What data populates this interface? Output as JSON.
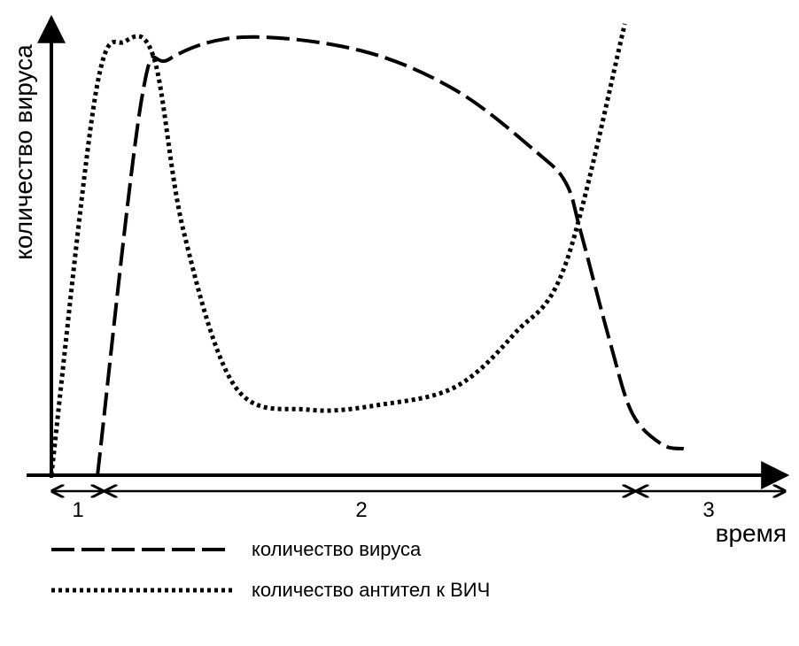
{
  "chart_data": {
    "type": "line",
    "xlabel": "время",
    "ylabel": "количество вируса",
    "stages": [
      "1",
      "2",
      "3"
    ],
    "series": [
      {
        "name": "количество вируса",
        "style": "dashed",
        "color": "#000000",
        "values": [
          [
            0.0628,
            0.0
          ],
          [
            0.1228,
            0.85
          ],
          [
            0.16,
            0.94
          ],
          [
            0.26,
            0.99
          ],
          [
            0.42,
            0.96
          ],
          [
            0.55,
            0.87
          ],
          [
            0.66,
            0.73
          ],
          [
            0.7,
            0.66
          ],
          [
            0.72,
            0.55
          ],
          [
            0.76,
            0.3
          ],
          [
            0.79,
            0.14
          ],
          [
            0.83,
            0.07
          ],
          [
            0.86,
            0.06
          ]
        ]
      },
      {
        "name": "количество антител к ВИЧ",
        "style": "dotted",
        "color": "#000000",
        "values": [
          [
            0.0,
            0.0
          ],
          [
            0.06,
            0.86
          ],
          [
            0.1,
            0.98
          ],
          [
            0.14,
            0.94
          ],
          [
            0.18,
            0.55
          ],
          [
            0.25,
            0.2
          ],
          [
            0.35,
            0.148
          ],
          [
            0.45,
            0.16
          ],
          [
            0.55,
            0.2
          ],
          [
            0.63,
            0.32
          ],
          [
            0.7,
            0.48
          ],
          [
            0.78,
            1.02
          ]
        ]
      }
    ],
    "legend": [
      {
        "label": "количество вируса",
        "style": "dashed"
      },
      {
        "label": "количество антител к ВИЧ",
        "style": "dotted"
      }
    ],
    "xlim": [
      0,
      1
    ],
    "ylim": [
      0,
      1
    ],
    "grid": false,
    "legend_position": "bottom-left"
  }
}
